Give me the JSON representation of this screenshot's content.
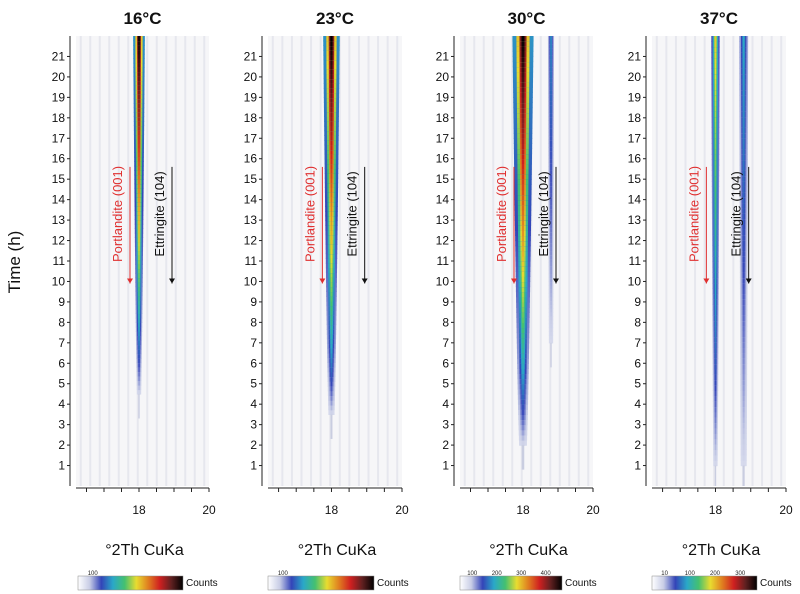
{
  "chart_data": [
    {
      "type": "heatmap",
      "title": "16°C",
      "xlabel": "°2Th CuKa",
      "ylabel": "Time (h)",
      "xlim": [
        16.2,
        20
      ],
      "ylim": [
        0,
        22
      ],
      "x_ticks": [
        "18",
        "20"
      ],
      "y_ticks": [
        "1",
        "2",
        "3",
        "4",
        "5",
        "6",
        "7",
        "8",
        "9",
        "10",
        "11",
        "12",
        "13",
        "14",
        "15",
        "16",
        "17",
        "18",
        "19",
        "20",
        "21"
      ],
      "peaks": [
        {
          "x": 18.0,
          "onset_h": 4.5,
          "max_level": 1.0,
          "width": 0.05
        }
      ],
      "annotations": [
        {
          "text": "Portlandite (001)",
          "color": "#e03030",
          "x": 17.6
        },
        {
          "text": "Ettringite (104)",
          "color": "#111111",
          "x": 18.8
        }
      ],
      "colorbar": {
        "label": "Counts",
        "ticks": [
          "100"
        ]
      }
    },
    {
      "type": "heatmap",
      "title": "23°C",
      "xlabel": "°2Th CuKa",
      "xlim": [
        16.2,
        20
      ],
      "ylim": [
        0,
        22
      ],
      "x_ticks": [
        "18",
        "20"
      ],
      "y_ticks": [
        "1",
        "2",
        "3",
        "4",
        "5",
        "6",
        "7",
        "8",
        "9",
        "10",
        "11",
        "12",
        "13",
        "14",
        "15",
        "16",
        "17",
        "18",
        "19",
        "20",
        "21"
      ],
      "peaks": [
        {
          "x": 18.0,
          "onset_h": 3.5,
          "max_level": 1.0,
          "width": 0.07
        }
      ],
      "annotations": [
        {
          "text": "Portlandite (001)",
          "color": "#e03030",
          "x": 17.6
        },
        {
          "text": "Ettringite (104)",
          "color": "#111111",
          "x": 18.8
        }
      ],
      "colorbar": {
        "label": "Counts",
        "ticks": [
          "100"
        ]
      }
    },
    {
      "type": "heatmap",
      "title": "30°C",
      "xlabel": "°2Th CuKa",
      "xlim": [
        16.2,
        20
      ],
      "ylim": [
        0,
        22
      ],
      "x_ticks": [
        "18",
        "20"
      ],
      "y_ticks": [
        "1",
        "2",
        "3",
        "4",
        "5",
        "6",
        "7",
        "8",
        "9",
        "10",
        "11",
        "12",
        "13",
        "14",
        "15",
        "16",
        "17",
        "18",
        "19",
        "20",
        "21"
      ],
      "peaks": [
        {
          "x": 18.0,
          "onset_h": 2.0,
          "max_level": 1.0,
          "width": 0.09
        },
        {
          "x": 18.8,
          "onset_h": 7.0,
          "max_level": 0.25,
          "width": 0.05
        }
      ],
      "annotations": [
        {
          "text": "Portlandite (001)",
          "color": "#e03030",
          "x": 17.6
        },
        {
          "text": "Ettringite (104)",
          "color": "#111111",
          "x": 18.8
        }
      ],
      "colorbar": {
        "label": "Counts",
        "ticks": [
          "100",
          "200",
          "300",
          "400"
        ]
      }
    },
    {
      "type": "heatmap",
      "title": "37°C",
      "xlabel": "°2Th CuKa",
      "xlim": [
        16.2,
        20
      ],
      "ylim": [
        0,
        22
      ],
      "x_ticks": [
        "18",
        "20"
      ],
      "y_ticks": [
        "1",
        "2",
        "3",
        "4",
        "5",
        "6",
        "7",
        "8",
        "9",
        "10",
        "11",
        "12",
        "13",
        "14",
        "15",
        "16",
        "17",
        "18",
        "19",
        "20",
        "21"
      ],
      "peaks": [
        {
          "x": 18.0,
          "onset_h": 1.0,
          "max_level": 0.55,
          "width": 0.05
        },
        {
          "x": 18.8,
          "onset_h": 1.0,
          "max_level": 0.28,
          "width": 0.07
        }
      ],
      "annotations": [
        {
          "text": "Portlandite (001)",
          "color": "#e03030",
          "x": 17.6
        },
        {
          "text": "Ettringite (104)",
          "color": "#111111",
          "x": 18.8
        }
      ],
      "colorbar": {
        "label": "Counts",
        "ticks": [
          "10",
          "100",
          "200",
          "300"
        ]
      }
    }
  ],
  "colors": {
    "background": "#f6f6f8",
    "colormap": [
      "#ffffff",
      "#c8cde6",
      "#3344b8",
      "#2aa8c8",
      "#44c070",
      "#e8dc30",
      "#e08020",
      "#d02020",
      "#602020",
      "#000000"
    ]
  }
}
